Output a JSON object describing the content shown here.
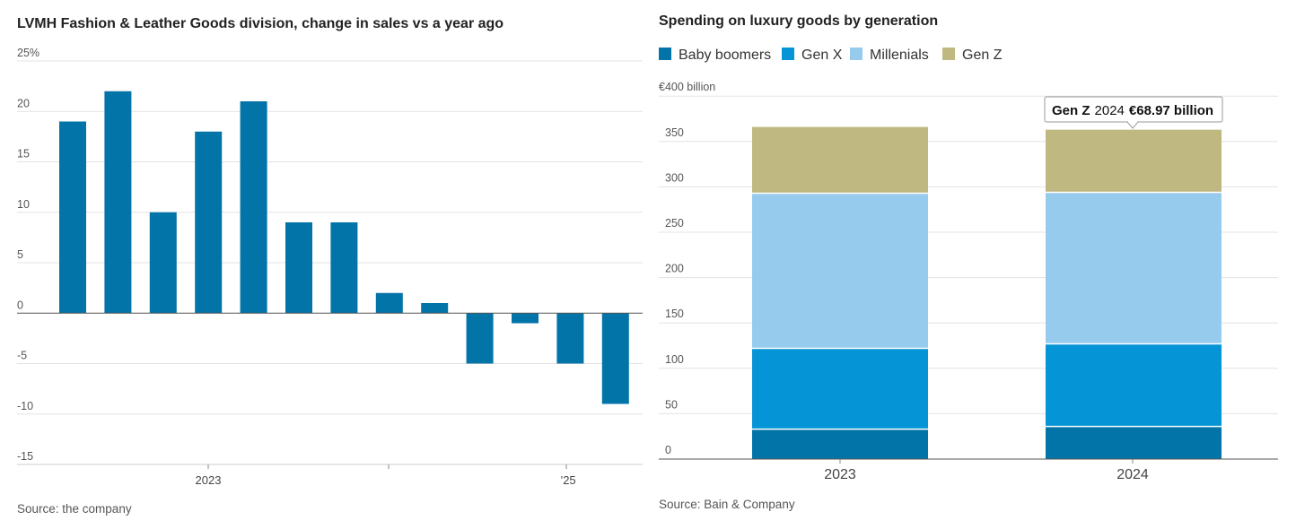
{
  "chart_data": [
    {
      "type": "bar",
      "title": "LVMH Fashion & Leather Goods division, change in sales vs a year ago",
      "ylabel": "",
      "xlabel": "",
      "ylim": [
        -15,
        25
      ],
      "y_ticks": [
        "25%",
        "20",
        "15",
        "10",
        "5",
        "0",
        "-5",
        "-10",
        "-15"
      ],
      "y_tick_values": [
        25,
        20,
        15,
        10,
        5,
        0,
        -5,
        -10,
        -15
      ],
      "x_tick_labels": [
        "2023",
        "",
        "’25"
      ],
      "values": [
        19,
        22,
        10,
        18,
        21,
        9,
        9,
        2,
        1,
        -5,
        -1,
        -5,
        -9
      ],
      "color": "#0274a8",
      "source": "Source: the company"
    },
    {
      "type": "bar",
      "stacked": true,
      "title": "Spending on luxury goods by generation",
      "categories": [
        "2023",
        "2024"
      ],
      "ylim": [
        0,
        400
      ],
      "unit_label": "€400 billion",
      "y_ticks": [
        "350",
        "300",
        "250",
        "200",
        "150",
        "100",
        "50",
        "0"
      ],
      "y_tick_values": [
        350,
        300,
        250,
        200,
        150,
        100,
        50,
        0
      ],
      "series": [
        {
          "name": "Baby boomers",
          "color": "#0274a8",
          "values": [
            33,
            36
          ]
        },
        {
          "name": "Gen X",
          "color": "#0595d6",
          "values": [
            89,
            91
          ]
        },
        {
          "name": "Millenials",
          "color": "#97cbee",
          "values": [
            171,
            167
          ]
        },
        {
          "name": "Gen Z",
          "color": "#bfb880",
          "values": [
            73,
            69
          ]
        }
      ],
      "tooltip": {
        "series": "Gen Z",
        "year": "2024",
        "value": "€68.97 billion"
      },
      "source": "Source: Bain & Company"
    }
  ]
}
